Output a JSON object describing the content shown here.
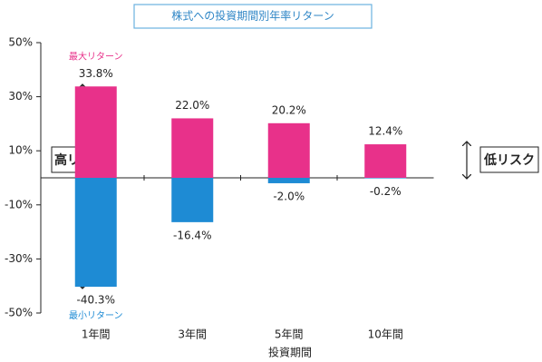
{
  "chart_data": {
    "type": "bar",
    "title": "株式への投資期間別年率リターン",
    "x_label": "投資期間",
    "categories": [
      "1年間",
      "3年間",
      "5年間",
      "10年間"
    ],
    "series": [
      {
        "name": "最大リターン",
        "color": "#e8318a",
        "values": [
          33.8,
          22.0,
          20.2,
          12.4
        ],
        "value_labels": [
          "33.8%",
          "22.0%",
          "20.2%",
          "12.4%"
        ]
      },
      {
        "name": "最小リターン",
        "color": "#1e8bd4",
        "values": [
          -40.3,
          -16.4,
          -2.0,
          -0.2
        ],
        "value_labels": [
          "-40.3%",
          "-16.4%",
          "-2.0%",
          "-0.2%"
        ]
      }
    ],
    "ylim": [
      -50,
      50
    ],
    "yticks": [
      {
        "value": 50,
        "label": "50%"
      },
      {
        "value": 30,
        "label": "30%"
      },
      {
        "value": 10,
        "label": "10%"
      },
      {
        "value": -10,
        "label": "-10%"
      },
      {
        "value": -30,
        "label": "-30%"
      },
      {
        "value": -50,
        "label": "-50%"
      }
    ],
    "annotations": [
      "高リスク",
      "低リスク"
    ]
  }
}
